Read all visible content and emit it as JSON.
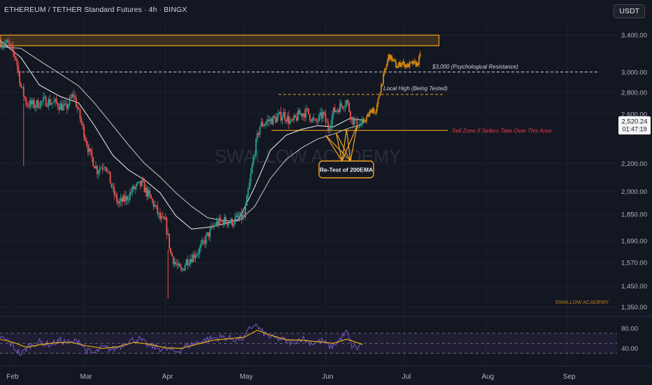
{
  "header": {
    "title": "ETHEREUM / TETHER Standard Futures · 4h · BINGX",
    "currency": "USDT"
  },
  "colors": {
    "background": "#131722",
    "up": "#26a69a",
    "down": "#ef5350",
    "projection": "#d4860f",
    "zone": "#f0a020",
    "ema_fast": "#f2f2f2",
    "ema_slow": "#b8b8b8",
    "rsi": "#7e57c2",
    "rsi_ma": "#f2b80a",
    "sell_zone_text": "#f23645"
  },
  "chart_data": [
    {
      "type": "candlestick",
      "title": "ETHEREUM / TETHER Standard Futures · 4h · BINGX",
      "y_scale": "log",
      "ylim": [
        1330,
        3500
      ],
      "y_ticks": [
        "3,400.00",
        "3,000.00",
        "2,800.00",
        "2,600.00",
        "2,200.00",
        "2,000.00",
        "1,850.00",
        "1,690.00",
        "1,570.00",
        "1,450.00",
        "1,350.00"
      ],
      "y_tick_values": [
        3400,
        3000,
        2800,
        2600,
        2200,
        2000,
        1850,
        1690,
        1570,
        1450,
        1350
      ],
      "x_ticks": [
        "Feb",
        "Mar",
        "Apr",
        "May",
        "Jun",
        "Jul",
        "Aug",
        "Sep"
      ],
      "x_tick_days": [
        31,
        59,
        90,
        120,
        151,
        181,
        212,
        243
      ],
      "x_range_days": [
        27,
        262
      ],
      "price_path": [
        {
          "day": 27,
          "price": 3320
        },
        {
          "day": 30,
          "price": 3300
        },
        {
          "day": 33,
          "price": 3150
        },
        {
          "day": 35,
          "price": 2850
        },
        {
          "day": 37,
          "price": 2700
        },
        {
          "day": 40,
          "price": 2680
        },
        {
          "day": 44,
          "price": 2720
        },
        {
          "day": 48,
          "price": 2700
        },
        {
          "day": 52,
          "price": 2650
        },
        {
          "day": 55,
          "price": 2780
        },
        {
          "day": 58,
          "price": 2520
        },
        {
          "day": 61,
          "price": 2280
        },
        {
          "day": 64,
          "price": 2150
        },
        {
          "day": 67,
          "price": 2200
        },
        {
          "day": 70,
          "price": 2000
        },
        {
          "day": 72,
          "price": 1920
        },
        {
          "day": 75,
          "price": 1950
        },
        {
          "day": 78,
          "price": 2020
        },
        {
          "day": 81,
          "price": 2050
        },
        {
          "day": 84,
          "price": 1960
        },
        {
          "day": 86,
          "price": 1900
        },
        {
          "day": 88,
          "price": 1820
        },
        {
          "day": 90,
          "price": 1800
        },
        {
          "day": 92,
          "price": 1620
        },
        {
          "day": 94,
          "price": 1560
        },
        {
          "day": 96,
          "price": 1520
        },
        {
          "day": 98,
          "price": 1580
        },
        {
          "day": 100,
          "price": 1600
        },
        {
          "day": 103,
          "price": 1640
        },
        {
          "day": 106,
          "price": 1720
        },
        {
          "day": 109,
          "price": 1790
        },
        {
          "day": 112,
          "price": 1810
        },
        {
          "day": 115,
          "price": 1800
        },
        {
          "day": 118,
          "price": 1830
        },
        {
          "day": 120,
          "price": 1830
        },
        {
          "day": 122,
          "price": 2050
        },
        {
          "day": 124,
          "price": 2300
        },
        {
          "day": 126,
          "price": 2500
        },
        {
          "day": 129,
          "price": 2540
        },
        {
          "day": 132,
          "price": 2560
        },
        {
          "day": 135,
          "price": 2600
        },
        {
          "day": 138,
          "price": 2520
        },
        {
          "day": 141,
          "price": 2600
        },
        {
          "day": 144,
          "price": 2620
        },
        {
          "day": 147,
          "price": 2520
        },
        {
          "day": 150,
          "price": 2600
        },
        {
          "day": 152,
          "price": 2480
        },
        {
          "day": 154,
          "price": 2620
        },
        {
          "day": 157,
          "price": 2680
        },
        {
          "day": 159,
          "price": 2720
        },
        {
          "day": 161,
          "price": 2560
        },
        {
          "day": 163,
          "price": 2510
        },
        {
          "day": 165,
          "price": 2520
        }
      ],
      "projection_path": [
        {
          "day": 165,
          "price": 2520
        },
        {
          "day": 167,
          "price": 2580
        },
        {
          "day": 169,
          "price": 2650
        },
        {
          "day": 170,
          "price": 2590
        },
        {
          "day": 172,
          "price": 2850
        },
        {
          "day": 174,
          "price": 3050
        },
        {
          "day": 175,
          "price": 3170
        },
        {
          "day": 177,
          "price": 3110
        },
        {
          "day": 178,
          "price": 3050
        },
        {
          "day": 180,
          "price": 3100
        },
        {
          "day": 182,
          "price": 3060
        },
        {
          "day": 184,
          "price": 3090
        },
        {
          "day": 186,
          "price": 3080
        },
        {
          "day": 187,
          "price": 3170
        }
      ],
      "ema_fast": [
        {
          "day": 27,
          "price": 3340
        },
        {
          "day": 35,
          "price": 3150
        },
        {
          "day": 42,
          "price": 2870
        },
        {
          "day": 50,
          "price": 2760
        },
        {
          "day": 57,
          "price": 2700
        },
        {
          "day": 63,
          "price": 2500
        },
        {
          "day": 70,
          "price": 2260
        },
        {
          "day": 76,
          "price": 2150
        },
        {
          "day": 82,
          "price": 2080
        },
        {
          "day": 88,
          "price": 1990
        },
        {
          "day": 94,
          "price": 1840
        },
        {
          "day": 100,
          "price": 1760
        },
        {
          "day": 106,
          "price": 1770
        },
        {
          "day": 112,
          "price": 1790
        },
        {
          "day": 118,
          "price": 1820
        },
        {
          "day": 124,
          "price": 2030
        },
        {
          "day": 130,
          "price": 2300
        },
        {
          "day": 136,
          "price": 2420
        },
        {
          "day": 142,
          "price": 2470
        },
        {
          "day": 148,
          "price": 2500
        },
        {
          "day": 154,
          "price": 2490
        },
        {
          "day": 160,
          "price": 2560
        },
        {
          "day": 165,
          "price": 2550
        }
      ],
      "ema_slow": [
        {
          "day": 27,
          "price": 3270
        },
        {
          "day": 35,
          "price": 3250
        },
        {
          "day": 43,
          "price": 3100
        },
        {
          "day": 50,
          "price": 2980
        },
        {
          "day": 57,
          "price": 2860
        },
        {
          "day": 63,
          "price": 2700
        },
        {
          "day": 70,
          "price": 2500
        },
        {
          "day": 76,
          "price": 2340
        },
        {
          "day": 82,
          "price": 2200
        },
        {
          "day": 88,
          "price": 2100
        },
        {
          "day": 94,
          "price": 1990
        },
        {
          "day": 100,
          "price": 1900
        },
        {
          "day": 106,
          "price": 1830
        },
        {
          "day": 112,
          "price": 1810
        },
        {
          "day": 118,
          "price": 1810
        },
        {
          "day": 124,
          "price": 1900
        },
        {
          "day": 130,
          "price": 2090
        },
        {
          "day": 136,
          "price": 2230
        },
        {
          "day": 142,
          "price": 2320
        },
        {
          "day": 148,
          "price": 2390
        },
        {
          "day": 154,
          "price": 2430
        },
        {
          "day": 160,
          "price": 2480
        },
        {
          "day": 165,
          "price": 2510
        }
      ],
      "resistance_zone": [
        3280,
        3400
      ],
      "levels": [
        {
          "label": "$3,000 (Psychological Resistance)",
          "price": 3000
        },
        {
          "label": "Local High (Being Tested)",
          "price": 2780
        },
        {
          "label": "Sell Zone If Sellers Take Over This Area",
          "price": 2460
        }
      ],
      "annotation": "Re-Test of 200EMA",
      "current_price": "2,520.24",
      "countdown": "01:47:19",
      "watermark": "SWALLOW ACADEMY",
      "signature": "SWALLOW ACADEMY"
    },
    {
      "type": "line",
      "series_role": "RSI oscillator",
      "ylim": [
        20,
        95
      ],
      "y_ticks": [
        "80.00",
        "40.00"
      ],
      "y_tick_values": [
        80,
        40
      ],
      "bands": [
        30,
        50,
        70
      ],
      "rsi": [
        {
          "day": 27,
          "value": 62
        },
        {
          "day": 30,
          "value": 55
        },
        {
          "day": 33,
          "value": 38
        },
        {
          "day": 35,
          "value": 28
        },
        {
          "day": 38,
          "value": 45
        },
        {
          "day": 42,
          "value": 52
        },
        {
          "day": 46,
          "value": 48
        },
        {
          "day": 50,
          "value": 55
        },
        {
          "day": 54,
          "value": 50
        },
        {
          "day": 57,
          "value": 56
        },
        {
          "day": 60,
          "value": 35
        },
        {
          "day": 63,
          "value": 30
        },
        {
          "day": 66,
          "value": 42
        },
        {
          "day": 70,
          "value": 38
        },
        {
          "day": 73,
          "value": 45
        },
        {
          "day": 76,
          "value": 55
        },
        {
          "day": 80,
          "value": 58
        },
        {
          "day": 84,
          "value": 44
        },
        {
          "day": 88,
          "value": 40
        },
        {
          "day": 91,
          "value": 38
        },
        {
          "day": 94,
          "value": 33
        },
        {
          "day": 97,
          "value": 42
        },
        {
          "day": 100,
          "value": 48
        },
        {
          "day": 104,
          "value": 55
        },
        {
          "day": 108,
          "value": 60
        },
        {
          "day": 112,
          "value": 62
        },
        {
          "day": 116,
          "value": 58
        },
        {
          "day": 120,
          "value": 60
        },
        {
          "day": 122,
          "value": 78
        },
        {
          "day": 124,
          "value": 88
        },
        {
          "day": 127,
          "value": 72
        },
        {
          "day": 130,
          "value": 62
        },
        {
          "day": 134,
          "value": 58
        },
        {
          "day": 138,
          "value": 52
        },
        {
          "day": 142,
          "value": 60
        },
        {
          "day": 146,
          "value": 50
        },
        {
          "day": 150,
          "value": 55
        },
        {
          "day": 153,
          "value": 42
        },
        {
          "day": 156,
          "value": 55
        },
        {
          "day": 159,
          "value": 72
        },
        {
          "day": 161,
          "value": 45
        },
        {
          "day": 163,
          "value": 40
        },
        {
          "day": 165,
          "value": 50
        }
      ],
      "rsi_ma": [
        {
          "day": 27,
          "value": 58
        },
        {
          "day": 32,
          "value": 52
        },
        {
          "day": 37,
          "value": 42
        },
        {
          "day": 42,
          "value": 47
        },
        {
          "day": 48,
          "value": 51
        },
        {
          "day": 54,
          "value": 52
        },
        {
          "day": 60,
          "value": 45
        },
        {
          "day": 66,
          "value": 40
        },
        {
          "day": 72,
          "value": 43
        },
        {
          "day": 78,
          "value": 52
        },
        {
          "day": 84,
          "value": 48
        },
        {
          "day": 90,
          "value": 41
        },
        {
          "day": 96,
          "value": 40
        },
        {
          "day": 102,
          "value": 48
        },
        {
          "day": 108,
          "value": 56
        },
        {
          "day": 114,
          "value": 59
        },
        {
          "day": 120,
          "value": 62
        },
        {
          "day": 125,
          "value": 76
        },
        {
          "day": 130,
          "value": 66
        },
        {
          "day": 136,
          "value": 57
        },
        {
          "day": 142,
          "value": 56
        },
        {
          "day": 148,
          "value": 53
        },
        {
          "day": 154,
          "value": 50
        },
        {
          "day": 159,
          "value": 58
        },
        {
          "day": 165,
          "value": 48
        }
      ]
    }
  ]
}
